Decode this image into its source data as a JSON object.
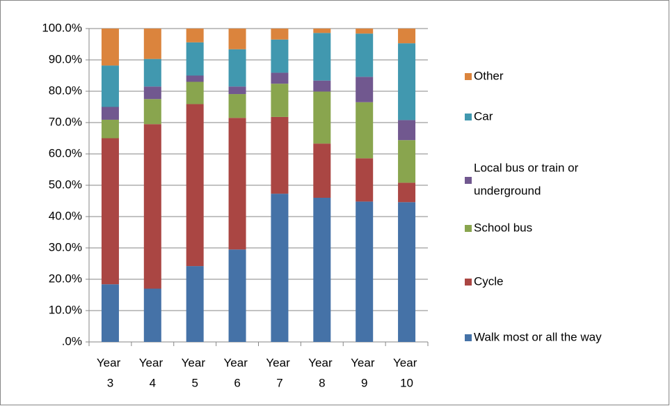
{
  "chart_data": {
    "type": "stacked_bar",
    "categories": [
      "Year 3",
      "Year 4",
      "Year 5",
      "Year 6",
      "Year 7",
      "Year 8",
      "Year 9",
      "Year 10"
    ],
    "series": [
      {
        "name": "Walk most or all the way",
        "color": "#4572a7",
        "values": [
          18.4,
          17.0,
          24.2,
          29.5,
          47.3,
          46.0,
          44.8,
          44.6
        ]
      },
      {
        "name": "Cycle",
        "color": "#aa4643",
        "values": [
          46.6,
          52.5,
          51.7,
          42.0,
          24.5,
          17.3,
          13.8,
          6.2
        ]
      },
      {
        "name": "School bus",
        "color": "#89a54e",
        "values": [
          5.9,
          8.0,
          7.1,
          7.6,
          10.6,
          16.6,
          17.9,
          13.6
        ]
      },
      {
        "name": "Local bus or train or underground",
        "color": "#71588f",
        "values": [
          4.1,
          4.0,
          2.0,
          2.4,
          3.5,
          3.5,
          8.1,
          6.4
        ]
      },
      {
        "name": "Car",
        "color": "#4198af",
        "values": [
          13.2,
          8.8,
          10.6,
          11.9,
          10.6,
          15.2,
          13.8,
          24.5
        ]
      },
      {
        "name": "Other",
        "color": "#db843d",
        "values": [
          11.8,
          9.7,
          4.4,
          6.6,
          3.5,
          1.4,
          1.6,
          4.7
        ]
      }
    ],
    "ylim": [
      0,
      100
    ],
    "yticks": [
      {
        "value": 0,
        "label": ".0%"
      },
      {
        "value": 10,
        "label": "10.0%"
      },
      {
        "value": 20,
        "label": "20.0%"
      },
      {
        "value": 30,
        "label": "30.0%"
      },
      {
        "value": 40,
        "label": "40.0%"
      },
      {
        "value": 50,
        "label": "50.0%"
      },
      {
        "value": 60,
        "label": "60.0%"
      },
      {
        "value": 70,
        "label": "70.0%"
      },
      {
        "value": 80,
        "label": "80.0%"
      },
      {
        "value": 90,
        "label": "90.0%"
      },
      {
        "value": 100,
        "label": "100.0%"
      }
    ],
    "grid": true,
    "legend": "right"
  }
}
